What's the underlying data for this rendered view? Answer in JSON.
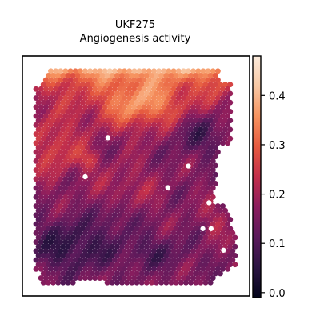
{
  "chart_data": {
    "type": "heatmap",
    "title": "UKF275",
    "subtitle": "Angiogenesis activity",
    "xlabel": "",
    "ylabel": "",
    "grid": false,
    "colormap": "rocket",
    "colormap_stops": [
      "#03051a",
      "#2b1442",
      "#5a1a5b",
      "#8b1d5e",
      "#c32f4b",
      "#e65a3f",
      "#f6935f",
      "#f8c8a4",
      "#faebdd"
    ],
    "colorbar": {
      "range": [
        -0.01,
        0.48
      ],
      "ticks": [
        0.0,
        0.1,
        0.2,
        0.3,
        0.4
      ],
      "tick_labels": [
        "0.0",
        "0.1",
        "0.2",
        "0.3",
        "0.4"
      ]
    },
    "spots": {
      "description_of_values": "Angiogenesis activity score per spatial spot",
      "grid_columns": 42,
      "grid_rows": 48,
      "value_min": 0.0,
      "value_max": 0.47,
      "typical_low": 0.05,
      "typical_high": 0.44,
      "missing_spot_color": "#ffffff",
      "missing_spots": [
        [
          0.36,
          0.32
        ],
        [
          0.25,
          0.5
        ],
        [
          0.75,
          0.45
        ],
        [
          0.65,
          0.55
        ],
        [
          0.85,
          0.62
        ],
        [
          0.82,
          0.74
        ],
        [
          0.86,
          0.74
        ],
        [
          0.92,
          0.84
        ]
      ]
    },
    "regions": [
      {
        "area": "top edge (left half)",
        "score": 0.38
      },
      {
        "area": "top center band",
        "score": 0.42
      },
      {
        "area": "upper-middle bright patch",
        "score": 0.41
      },
      {
        "area": "left side middle",
        "score": 0.3
      },
      {
        "area": "center",
        "score": 0.22
      },
      {
        "area": "right side upper",
        "score": 0.14
      },
      {
        "area": "right side lower",
        "score": 0.18
      },
      {
        "area": "bottom left",
        "score": 0.07
      },
      {
        "area": "bottom center",
        "score": 0.1
      }
    ]
  }
}
